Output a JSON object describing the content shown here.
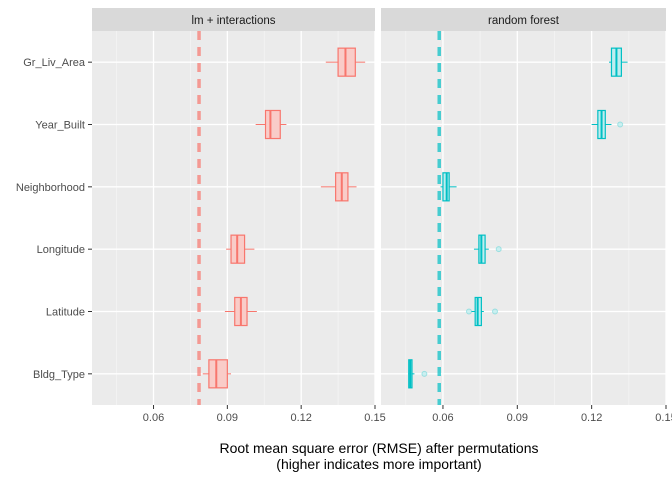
{
  "chart_data": {
    "type": "boxplot",
    "xlabel": "Root mean square error (RMSE) after permutations",
    "xlabel_sub": "(higher indicates more important)",
    "ylabel": "",
    "xlim": [
      0.035,
      0.15
    ],
    "x_ticks": [
      0.06,
      0.09,
      0.12,
      0.15
    ],
    "x_tick_labels": [
      "0.06",
      "0.09",
      "0.12",
      "0.15"
    ],
    "grid": true,
    "legend": "none",
    "categories": [
      "Gr_Liv_Area",
      "Year_Built",
      "Neighborhood",
      "Longitude",
      "Latitude",
      "Bldg_Type"
    ],
    "panels": [
      {
        "name": "lm + interactions",
        "color": "#F8766D",
        "fill": "#F9CCC8",
        "baseline": 0.0785,
        "boxes": [
          {
            "category": "Gr_Liv_Area",
            "min": 0.13,
            "q1": 0.135,
            "median": 0.138,
            "q3": 0.142,
            "max": 0.146,
            "outliers": []
          },
          {
            "category": "Year_Built",
            "min": 0.1015,
            "q1": 0.1055,
            "median": 0.1075,
            "q3": 0.1115,
            "max": 0.114,
            "outliers": []
          },
          {
            "category": "Neighborhood",
            "min": 0.128,
            "q1": 0.134,
            "median": 0.1365,
            "q3": 0.139,
            "max": 0.1425,
            "outliers": []
          },
          {
            "category": "Longitude",
            "min": 0.0895,
            "q1": 0.0915,
            "median": 0.094,
            "q3": 0.097,
            "max": 0.101,
            "outliers": []
          },
          {
            "category": "Latitude",
            "min": 0.089,
            "q1": 0.093,
            "median": 0.0955,
            "q3": 0.098,
            "max": 0.102,
            "outliers": []
          },
          {
            "category": "Bldg_Type",
            "min": 0.08,
            "q1": 0.0825,
            "median": 0.0855,
            "q3": 0.09,
            "max": 0.0915,
            "outliers": []
          }
        ]
      },
      {
        "name": "random forest",
        "color": "#00BFC4",
        "fill": "#BFEDEF",
        "baseline": 0.0585,
        "boxes": [
          {
            "category": "Gr_Liv_Area",
            "min": 0.127,
            "q1": 0.128,
            "median": 0.13,
            "q3": 0.132,
            "max": 0.1345,
            "outliers": []
          },
          {
            "category": "Year_Built",
            "min": 0.12,
            "q1": 0.1225,
            "median": 0.124,
            "q3": 0.1255,
            "max": 0.128,
            "outliers": [
              0.1315
            ]
          },
          {
            "category": "Neighborhood",
            "min": 0.059,
            "q1": 0.06,
            "median": 0.0615,
            "q3": 0.0625,
            "max": 0.0655,
            "outliers": []
          },
          {
            "category": "Longitude",
            "min": 0.0725,
            "q1": 0.0745,
            "median": 0.0755,
            "q3": 0.077,
            "max": 0.0785,
            "outliers": [
              0.0825
            ]
          },
          {
            "category": "Latitude",
            "min": 0.0715,
            "q1": 0.073,
            "median": 0.074,
            "q3": 0.0755,
            "max": 0.0765,
            "outliers": [
              0.0705,
              0.081
            ]
          },
          {
            "category": "Bldg_Type",
            "min": 0.046,
            "q1": 0.0462,
            "median": 0.0468,
            "q3": 0.0475,
            "max": 0.0485,
            "outliers": [
              0.0525
            ]
          }
        ]
      }
    ]
  }
}
